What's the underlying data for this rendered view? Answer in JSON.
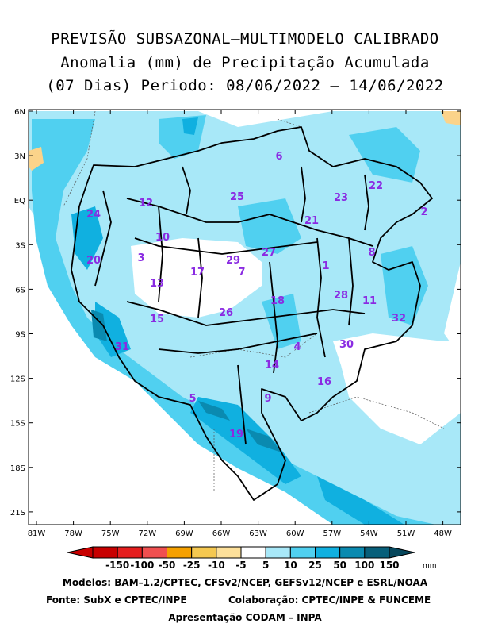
{
  "title": {
    "line1": "PREVISÃO SUBSAZONAL–MULTIMODELO CALIBRADO",
    "line2": "Anomalia (mm) de Precipitação Acumulada",
    "line3": "(07 Dias) Periodo: 08/06/2022 – 14/06/2022"
  },
  "map": {
    "lat_labels": [
      "6N",
      "3N",
      "EQ",
      "3S",
      "6S",
      "9S",
      "12S",
      "15S",
      "18S",
      "21S"
    ],
    "lon_labels": [
      "81W",
      "78W",
      "75W",
      "72W",
      "69W",
      "66W",
      "63W",
      "60W",
      "57W",
      "54W",
      "51W",
      "48W"
    ],
    "lat_range": [
      6,
      -22
    ],
    "lon_range": [
      -82,
      -47
    ],
    "basin_numbers": [
      "1",
      "2",
      "3",
      "4",
      "5",
      "6",
      "7",
      "8",
      "9",
      "10",
      "11",
      "12",
      "13",
      "14",
      "15",
      "16",
      "17",
      "18",
      "19",
      "20",
      "21",
      "22",
      "23",
      "24",
      "25",
      "26",
      "27",
      "28",
      "29",
      "30",
      "31",
      "32"
    ]
  },
  "colorbar": {
    "labels": [
      "-150",
      "-100",
      "-50",
      "-25",
      "-10",
      "-5",
      "5",
      "10",
      "25",
      "50",
      "100",
      "150"
    ],
    "unit": "mm",
    "colors": [
      "#c80000",
      "#e51e1e",
      "#f05050",
      "#f5a000",
      "#f5c850",
      "#fde09a",
      "#ffffff",
      "#a8e8f8",
      "#50d0f0",
      "#10b0e0",
      "#0a8ab0",
      "#075f7a"
    ]
  },
  "footer": {
    "models": "Modelos: BAM–1.2/CPTEC, CFSv2/NCEP, GEFSv12/NCEP e ESRL/NOAA",
    "source": "Fonte: SubX e CPTEC/INPE",
    "collab": "Colaboração: CPTEC/INPE & FUNCEME",
    "presentation": "Apresentação CODAM – INPA"
  }
}
